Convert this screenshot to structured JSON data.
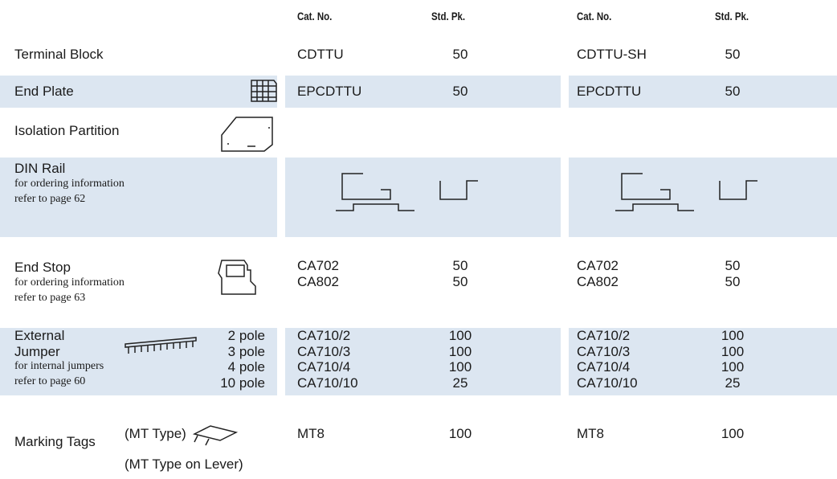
{
  "header": {
    "columns": [
      "Cat. No.",
      "Std. Pk.",
      "Cat. No.",
      "Std. Pk."
    ]
  },
  "rows": [
    {
      "label": "Terminal Block",
      "sets": [
        [
          {
            "cat": "CDTTU",
            "pack": "50"
          }
        ],
        [
          {
            "cat": "CDTTU-SH",
            "pack": "50"
          }
        ]
      ]
    },
    {
      "label": "End Plate",
      "sets": [
        [
          {
            "cat": "EPCDTTU",
            "pack": "50"
          }
        ],
        [
          {
            "cat": "EPCDTTU",
            "pack": "50"
          }
        ]
      ]
    },
    {
      "label": "Isolation Partition"
    },
    {
      "label": "DIN Rail",
      "notes": [
        "for ordering information",
        "refer to page 62"
      ]
    },
    {
      "label": "End Stop",
      "notes": [
        "for ordering information",
        "refer to page 63"
      ],
      "sets": [
        [
          {
            "cat": "CA702",
            "pack": "50"
          },
          {
            "cat": "CA802",
            "pack": "50"
          }
        ],
        [
          {
            "cat": "CA702",
            "pack": "50"
          },
          {
            "cat": "CA802",
            "pack": "50"
          }
        ]
      ]
    },
    {
      "label": "External Jumper",
      "notes": [
        "for internal jumpers",
        "refer to page 60"
      ],
      "options": [
        "2 pole",
        "3 pole",
        "4 pole",
        "10 pole"
      ],
      "sets": [
        [
          {
            "cat": "CA710/2",
            "pack": "100"
          },
          {
            "cat": "CA710/3",
            "pack": "100"
          },
          {
            "cat": "CA710/4",
            "pack": "100"
          },
          {
            "cat": "CA710/10",
            "pack": "25"
          }
        ],
        [
          {
            "cat": "CA710/2",
            "pack": "100"
          },
          {
            "cat": "CA710/3",
            "pack": "100"
          },
          {
            "cat": "CA710/4",
            "pack": "100"
          },
          {
            "cat": "CA710/10",
            "pack": "25"
          }
        ]
      ]
    },
    {
      "label": "Marking Tags",
      "options": [
        "(MT Type)",
        "(MT Type on Lever)"
      ],
      "sets": [
        [
          {
            "cat": "MT8",
            "pack": "100"
          }
        ],
        [
          {
            "cat": "MT8",
            "pack": "100"
          }
        ]
      ]
    }
  ]
}
